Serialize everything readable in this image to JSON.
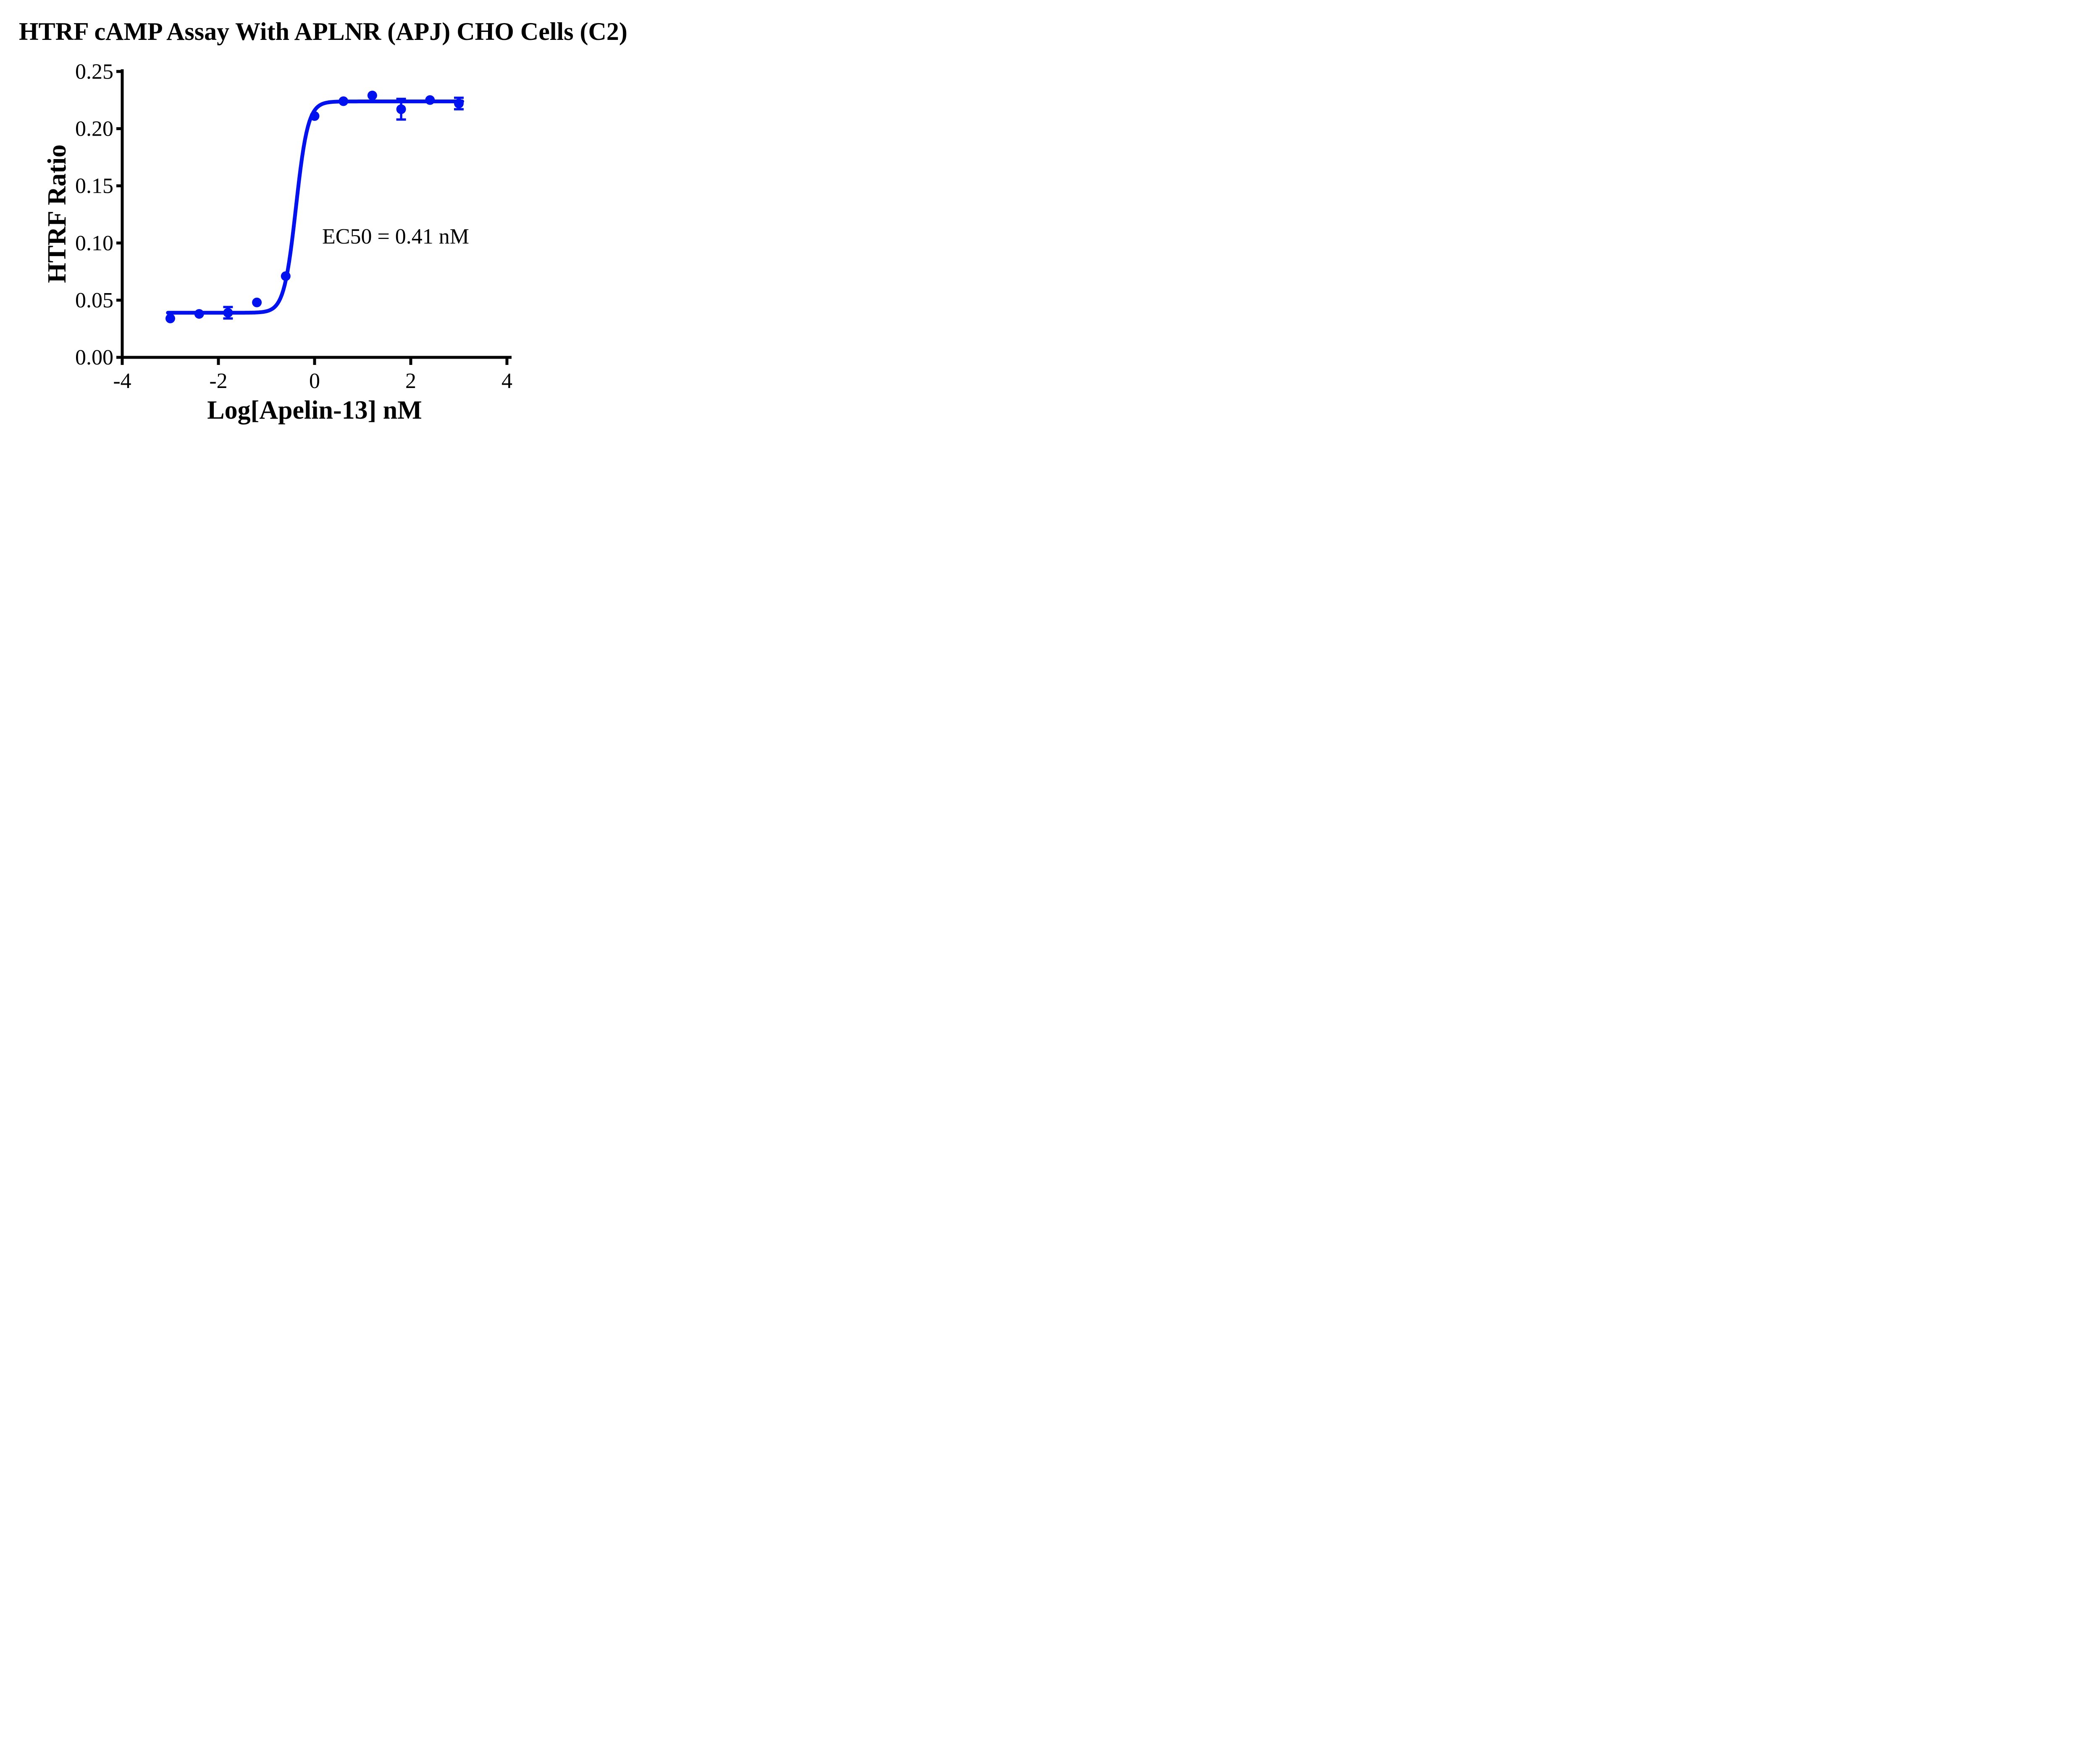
{
  "colors": {
    "series": "#0011F0",
    "axis": "#000000",
    "background": "#FFFFFF",
    "text": "#000000"
  },
  "chart_data": {
    "type": "scatter",
    "title": "HTRF cAMP Assay With APLNR (APJ) CHO Cells (C2)",
    "xlabel": "Log[Apelin-13] nM",
    "ylabel": "HTRF Ratio",
    "annotation": "EC50 = 0.41 nM",
    "xlim": [
      -4,
      4
    ],
    "ylim": [
      0,
      0.25
    ],
    "x_ticks": [
      "-4",
      "-2",
      "0",
      "2",
      "4"
    ],
    "y_ticks": [
      "0.00",
      "0.05",
      "0.10",
      "0.15",
      "0.20",
      "0.25"
    ],
    "legend": "none",
    "grid": "off",
    "marker": "circle",
    "points": [
      {
        "x": -3.0,
        "y": 0.034,
        "err": null
      },
      {
        "x": -2.4,
        "y": 0.038,
        "err": null
      },
      {
        "x": -1.8,
        "y": 0.039,
        "err": 0.005
      },
      {
        "x": -1.2,
        "y": 0.048,
        "err": null
      },
      {
        "x": -0.6,
        "y": 0.071,
        "err": null
      },
      {
        "x": 0.0,
        "y": 0.211,
        "err": null
      },
      {
        "x": 0.6,
        "y": 0.224,
        "err": null
      },
      {
        "x": 1.2,
        "y": 0.229,
        "err": null
      },
      {
        "x": 1.8,
        "y": 0.217,
        "err": 0.009
      },
      {
        "x": 2.4,
        "y": 0.225,
        "err": null
      },
      {
        "x": 3.0,
        "y": 0.222,
        "err": 0.005
      }
    ],
    "fit_curve": {
      "model": "four-parameter logistic (sigmoidal dose-response)",
      "bottom": 0.039,
      "top": 0.2238,
      "log_ec50": -0.387,
      "hill_slope": 3.5,
      "ec50_nM": 0.41,
      "x_start": -3.05,
      "x_end": 3.07
    }
  }
}
